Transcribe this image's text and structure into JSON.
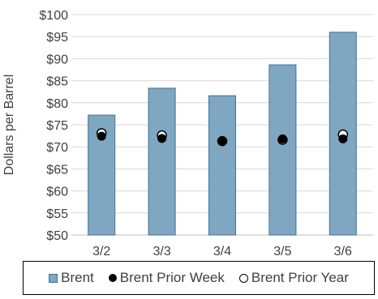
{
  "colors": {
    "bar_fill": "#7fa7c1",
    "bar_stroke": "#41719c",
    "grid": "#d9d9d9",
    "marker": "#000000"
  },
  "chart_data": {
    "type": "bar",
    "title": "",
    "xlabel": "",
    "ylabel": "Dollars per Barrel",
    "categories": [
      "3/2",
      "3/3",
      "3/4",
      "3/5",
      "3/6"
    ],
    "ylim": [
      50,
      100
    ],
    "yticks": [
      50,
      55,
      60,
      65,
      70,
      75,
      80,
      85,
      90,
      95,
      100
    ],
    "ytick_labels": [
      "$50",
      "$55",
      "$60",
      "$65",
      "$70",
      "$75",
      "$80",
      "$85",
      "$90",
      "$95",
      "$100"
    ],
    "grid": true,
    "legend_position": "bottom",
    "series": [
      {
        "name": "Brent",
        "kind": "bar",
        "values": [
          77.2,
          83.3,
          81.6,
          88.6,
          96.0
        ]
      },
      {
        "name": "Brent Prior Week",
        "kind": "marker-filled",
        "values": [
          72.4,
          71.9,
          71.2,
          71.8,
          71.8
        ]
      },
      {
        "name": "Brent Prior Year",
        "kind": "marker-hollow",
        "values": [
          73.1,
          72.6,
          71.3,
          71.6,
          72.8
        ]
      }
    ]
  }
}
